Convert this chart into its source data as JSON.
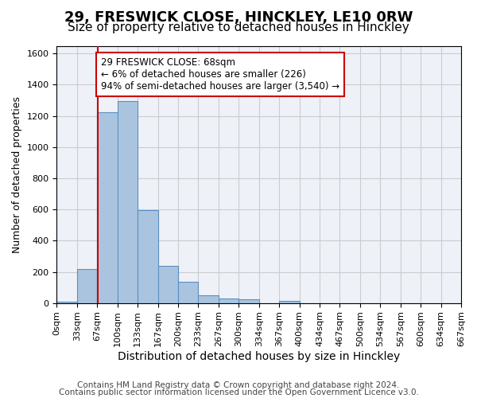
{
  "title": "29, FRESWICK CLOSE, HINCKLEY, LE10 0RW",
  "subtitle": "Size of property relative to detached houses in Hinckley",
  "xlabel": "Distribution of detached houses by size in Hinckley",
  "ylabel": "Number of detached properties",
  "bin_labels": [
    "0sqm",
    "33sqm",
    "67sqm",
    "100sqm",
    "133sqm",
    "167sqm",
    "200sqm",
    "233sqm",
    "267sqm",
    "300sqm",
    "334sqm",
    "367sqm",
    "400sqm",
    "434sqm",
    "467sqm",
    "500sqm",
    "534sqm",
    "567sqm",
    "600sqm",
    "634sqm",
    "667sqm"
  ],
  "bar_values": [
    10,
    220,
    1225,
    1295,
    595,
    240,
    135,
    50,
    30,
    25,
    0,
    15,
    0,
    0,
    0,
    0,
    0,
    0,
    0,
    0
  ],
  "bar_color": "#aac4e0",
  "bar_edge_color": "#5a8fc0",
  "bin_edges": [
    0,
    33,
    67,
    100,
    133,
    167,
    200,
    233,
    267,
    300,
    334,
    367,
    400,
    434,
    467,
    500,
    534,
    567,
    600,
    634,
    667
  ],
  "property_sqm": 68,
  "annotation_text": "29 FRESWICK CLOSE: 68sqm\n← 6% of detached houses are smaller (226)\n94% of semi-detached houses are larger (3,540) →",
  "annotation_box_color": "#ffffff",
  "annotation_box_edge_color": "#cc0000",
  "vline_color": "#cc0000",
  "ylim": [
    0,
    1650
  ],
  "yticks": [
    0,
    200,
    400,
    600,
    800,
    1000,
    1200,
    1400,
    1600
  ],
  "grid_color": "#cccccc",
  "bg_color": "#eef2f8",
  "footer_line1": "Contains HM Land Registry data © Crown copyright and database right 2024.",
  "footer_line2": "Contains public sector information licensed under the Open Government Licence v3.0.",
  "title_fontsize": 13,
  "subtitle_fontsize": 11,
  "xlabel_fontsize": 10,
  "ylabel_fontsize": 9,
  "tick_fontsize": 8,
  "footer_fontsize": 7.5,
  "annotation_fontsize": 8.5
}
